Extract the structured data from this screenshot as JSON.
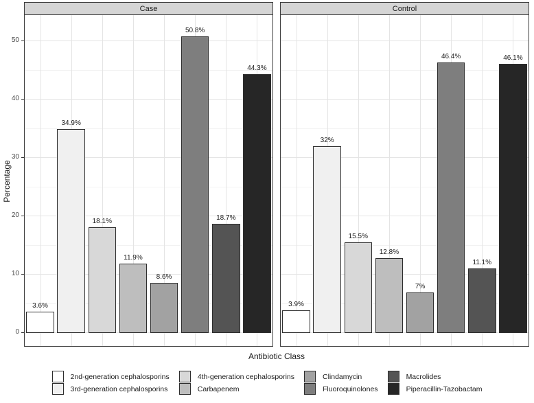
{
  "chart_data": {
    "type": "bar",
    "title": "",
    "xlabel": "Antibiotic Class",
    "ylabel": "Percentage",
    "facets": [
      {
        "label": "Case",
        "values": [
          3.6,
          34.9,
          18.1,
          11.9,
          8.6,
          50.8,
          18.7,
          44.3
        ],
        "value_labels": [
          "3.6%",
          "34.9%",
          "18.1%",
          "11.9%",
          "8.6%",
          "50.8%",
          "18.7%",
          "44.3%"
        ]
      },
      {
        "label": "Control",
        "values": [
          3.9,
          32,
          15.5,
          12.8,
          7,
          46.4,
          11.1,
          46.1
        ],
        "value_labels": [
          "3.9%",
          "32%",
          "15.5%",
          "12.8%",
          "7%",
          "46.4%",
          "11.1%",
          "46.1%"
        ]
      }
    ],
    "categories": [
      "2nd-generation cephalosporins",
      "3rd-generation cephalosporins",
      "4th-generation cephalosporins",
      "Carbapenem",
      "Clindamycin",
      "Fluoroquinolones",
      "Macrolides",
      "Piperacillin-Tazobactam"
    ],
    "colors": [
      "#FFFFFF",
      "#F0F0F0",
      "#D8D8D8",
      "#BEBEBE",
      "#A2A2A2",
      "#7E7E7E",
      "#545454",
      "#262626"
    ],
    "y_ticks": [
      0,
      10,
      20,
      30,
      40,
      50
    ],
    "y_minor_ticks": [
      5,
      15,
      25,
      35,
      45
    ],
    "ylim": [
      0,
      55
    ],
    "grid": true,
    "legend_position": "bottom",
    "legend_columns": 4
  },
  "style": {
    "background": "#FFFFFF",
    "strip_bg": "#D5D5D5",
    "panel_border": "#3D3D3D",
    "bar_border": "#2E2E2E",
    "grid_major": "#E4E4E4",
    "grid_minor": "#F2F2F2",
    "axis_text": "#4A4A4A",
    "tick_mark": "#333333",
    "text": "#1A1A1A"
  }
}
